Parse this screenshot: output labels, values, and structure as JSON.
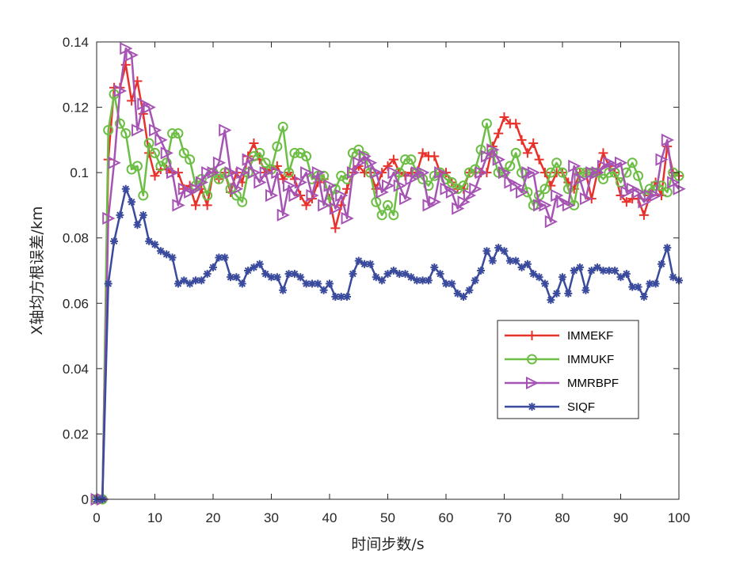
{
  "chart_data": {
    "type": "line",
    "xlabel": "时间步数/s",
    "ylabel": "X轴均方根误差/km",
    "xlim": [
      0,
      100
    ],
    "ylim": [
      0,
      0.14
    ],
    "xticks": [
      0,
      10,
      20,
      30,
      40,
      50,
      60,
      70,
      80,
      90,
      100
    ],
    "yticks": [
      0,
      0.02,
      0.04,
      0.06,
      0.08,
      0.1,
      0.12,
      0.14
    ],
    "grid": false,
    "legend_position": "center-right",
    "x": [
      0,
      1,
      2,
      3,
      4,
      5,
      6,
      7,
      8,
      9,
      10,
      11,
      12,
      13,
      14,
      15,
      16,
      17,
      18,
      19,
      20,
      21,
      22,
      23,
      24,
      25,
      26,
      27,
      28,
      29,
      30,
      31,
      32,
      33,
      34,
      35,
      36,
      37,
      38,
      39,
      40,
      41,
      42,
      43,
      44,
      45,
      46,
      47,
      48,
      49,
      50,
      51,
      52,
      53,
      54,
      55,
      56,
      57,
      58,
      59,
      60,
      61,
      62,
      63,
      64,
      65,
      66,
      67,
      68,
      69,
      70,
      71,
      72,
      73,
      74,
      75,
      76,
      77,
      78,
      79,
      80,
      81,
      82,
      83,
      84,
      85,
      86,
      87,
      88,
      89,
      90,
      91,
      92,
      93,
      94,
      95,
      96,
      97,
      98,
      99,
      100
    ],
    "series": [
      {
        "name": "IMMEKF",
        "color": "#e8312a",
        "marker": "plus",
        "values": [
          0,
          0,
          0.104,
          0.126,
          0.126,
          0.133,
          0.122,
          0.128,
          0.118,
          0.106,
          0.099,
          0.101,
          0.101,
          0.1,
          0.1,
          0.095,
          0.096,
          0.09,
          0.095,
          0.09,
          0.1,
          0.098,
          0.1,
          0.094,
          0.1,
          0.097,
          0.105,
          0.109,
          0.104,
          0.1,
          0.101,
          0.102,
          0.098,
          0.1,
          0.098,
          0.093,
          0.09,
          0.092,
          0.097,
          0.098,
          0.092,
          0.083,
          0.09,
          0.095,
          0.1,
          0.102,
          0.1,
          0.1,
          0.095,
          0.1,
          0.102,
          0.104,
          0.1,
          0.099,
          0.1,
          0.1,
          0.106,
          0.105,
          0.105,
          0.1,
          0.1,
          0.097,
          0.095,
          0.095,
          0.1,
          0.1,
          0.1,
          0.1,
          0.108,
          0.112,
          0.117,
          0.115,
          0.115,
          0.11,
          0.106,
          0.109,
          0.104,
          0.1,
          0.096,
          0.1,
          0.1,
          0.097,
          0.095,
          0.1,
          0.1,
          0.092,
          0.1,
          0.106,
          0.102,
          0.1,
          0.093,
          0.091,
          0.092,
          0.092,
          0.087,
          0.093,
          0.097,
          0.093,
          0.108,
          0.1,
          0.099
        ]
      },
      {
        "name": "IMMUKF",
        "color": "#6dbe45",
        "marker": "circle",
        "values": [
          0,
          0,
          0.113,
          0.124,
          0.115,
          0.112,
          0.101,
          0.102,
          0.093,
          0.109,
          0.106,
          0.102,
          0.103,
          0.112,
          0.112,
          0.106,
          0.104,
          0.096,
          0.098,
          0.093,
          0.1,
          0.098,
          0.1,
          0.095,
          0.093,
          0.091,
          0.1,
          0.105,
          0.106,
          0.103,
          0.101,
          0.108,
          0.114,
          0.1,
          0.106,
          0.106,
          0.105,
          0.098,
          0.099,
          0.099,
          0.091,
          0.095,
          0.099,
          0.098,
          0.106,
          0.107,
          0.105,
          0.1,
          0.091,
          0.087,
          0.09,
          0.087,
          0.1,
          0.104,
          0.104,
          0.1,
          0.098,
          0.096,
          0.099,
          0.1,
          0.098,
          0.097,
          0.095,
          0.096,
          0.1,
          0.101,
          0.107,
          0.115,
          0.106,
          0.1,
          0.1,
          0.102,
          0.106,
          0.1,
          0.094,
          0.09,
          0.093,
          0.095,
          0.1,
          0.103,
          0.1,
          0.095,
          0.09,
          0.1,
          0.1,
          0.1,
          0.1,
          0.098,
          0.1,
          0.1,
          0.097,
          0.1,
          0.103,
          0.099,
          0.093,
          0.095,
          0.096,
          0.096,
          0.094,
          0.1,
          0.099
        ]
      },
      {
        "name": "MMRBPF",
        "color": "#a654b4",
        "marker": "triangle-right",
        "values": [
          0,
          0,
          0.086,
          0.103,
          0.125,
          0.138,
          0.136,
          0.113,
          0.121,
          0.12,
          0.113,
          0.11,
          0.106,
          0.1,
          0.09,
          0.095,
          0.094,
          0.095,
          0.097,
          0.1,
          0.1,
          0.103,
          0.113,
          0.1,
          0.095,
          0.1,
          0.104,
          0.1,
          0.097,
          0.1,
          0.093,
          0.1,
          0.087,
          0.096,
          0.093,
          0.097,
          0.1,
          0.093,
          0.1,
          0.09,
          0.096,
          0.089,
          0.093,
          0.086,
          0.1,
          0.103,
          0.105,
          0.103,
          0.1,
          0.094,
          0.096,
          0.1,
          0.096,
          0.092,
          0.098,
          0.1,
          0.1,
          0.09,
          0.091,
          0.1,
          0.095,
          0.094,
          0.089,
          0.091,
          0.093,
          0.095,
          0.1,
          0.105,
          0.107,
          0.104,
          0.1,
          0.097,
          0.096,
          0.094,
          0.1,
          0.1,
          0.09,
          0.09,
          0.085,
          0.093,
          0.091,
          0.09,
          0.102,
          0.098,
          0.092,
          0.1,
          0.1,
          0.102,
          0.103,
          0.102,
          0.103,
          0.094,
          0.095,
          0.094,
          0.091,
          0.093,
          0.093,
          0.104,
          0.11,
          0.097,
          0.095
        ]
      },
      {
        "name": "SIQF",
        "color": "#3a4a9c",
        "marker": "asterisk",
        "values": [
          0,
          0,
          0.066,
          0.079,
          0.087,
          0.095,
          0.091,
          0.084,
          0.087,
          0.079,
          0.078,
          0.076,
          0.075,
          0.074,
          0.066,
          0.067,
          0.066,
          0.067,
          0.067,
          0.069,
          0.071,
          0.074,
          0.074,
          0.068,
          0.068,
          0.066,
          0.07,
          0.071,
          0.072,
          0.069,
          0.068,
          0.068,
          0.064,
          0.069,
          0.069,
          0.068,
          0.066,
          0.066,
          0.066,
          0.064,
          0.066,
          0.062,
          0.062,
          0.062,
          0.069,
          0.073,
          0.072,
          0.072,
          0.068,
          0.067,
          0.069,
          0.07,
          0.069,
          0.069,
          0.068,
          0.067,
          0.067,
          0.067,
          0.071,
          0.069,
          0.066,
          0.066,
          0.063,
          0.062,
          0.064,
          0.067,
          0.07,
          0.076,
          0.073,
          0.077,
          0.076,
          0.073,
          0.073,
          0.071,
          0.072,
          0.069,
          0.068,
          0.066,
          0.061,
          0.063,
          0.068,
          0.063,
          0.07,
          0.071,
          0.064,
          0.07,
          0.071,
          0.07,
          0.07,
          0.07,
          0.068,
          0.069,
          0.065,
          0.065,
          0.062,
          0.066,
          0.066,
          0.072,
          0.077,
          0.068,
          0.067
        ]
      }
    ]
  }
}
